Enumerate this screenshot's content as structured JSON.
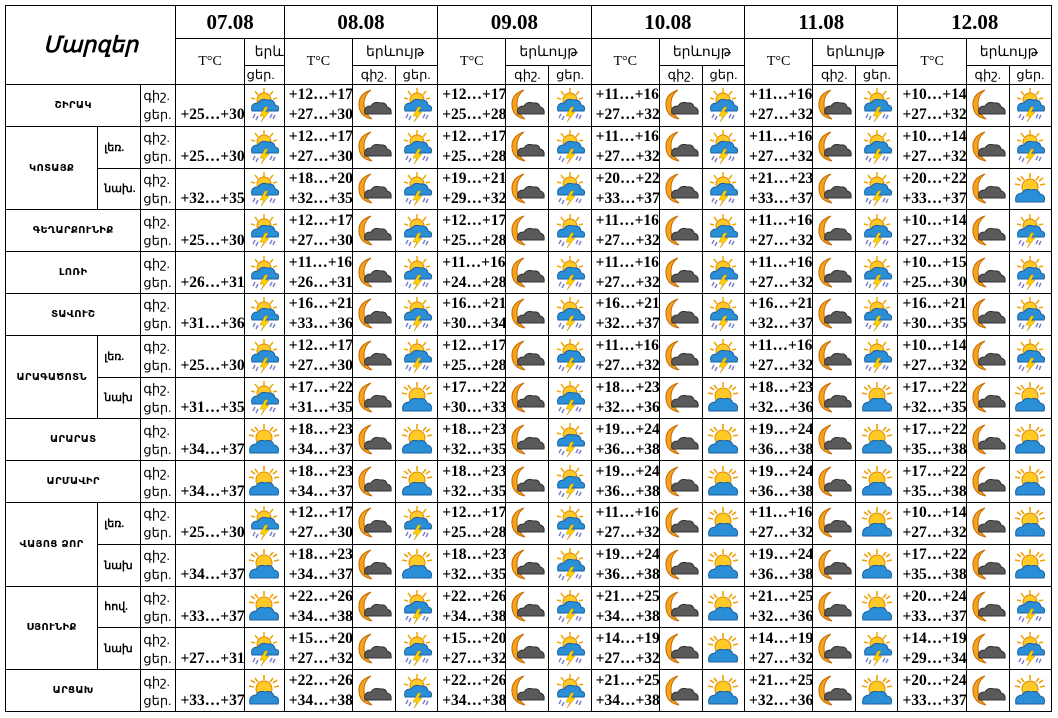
{
  "header": {
    "title": "Մարզեր",
    "temp_label": "T°C",
    "phenomenon_label": "երևույթ",
    "phenomenon_label_short": "երև",
    "night_label": "գիշ.",
    "day_label": "ցեր.",
    "dates": [
      "07.08",
      "08.08",
      "09.08",
      "10.08",
      "11.08",
      "12.08"
    ]
  },
  "icon_types": {
    "storm": "sun-cloud-thunderstorm-icon",
    "partly": "partly-cloudy-sun-icon",
    "night": "moon-cloud-icon"
  },
  "regions": [
    {
      "name": "ՇԻՐԱԿ",
      "subs": [
        {
          "sub": "",
          "d07": {
            "day": "+25…+30",
            "icon": "storm"
          },
          "days": [
            {
              "night": "+12…+17",
              "day": "+27…+30",
              "icon": "storm"
            },
            {
              "night": "+12…+17",
              "day": "+25…+28",
              "icon": "storm"
            },
            {
              "night": "+11…+16",
              "day": "+27…+32",
              "icon": "storm"
            },
            {
              "night": "+11…+16",
              "day": "+27…+32",
              "icon": "storm"
            },
            {
              "night": "+10…+14",
              "day": "+27…+32",
              "icon": "storm"
            }
          ]
        }
      ]
    },
    {
      "name": "ԿՈՏԱՅՔ",
      "subs": [
        {
          "sub": "լեռ.",
          "d07": {
            "day": "+25…+30",
            "icon": "storm"
          },
          "days": [
            {
              "night": "+12…+17",
              "day": "+27…+30",
              "icon": "storm"
            },
            {
              "night": "+12…+17",
              "day": "+25…+28",
              "icon": "storm"
            },
            {
              "night": "+11…+16",
              "day": "+27…+32",
              "icon": "storm"
            },
            {
              "night": "+11…+16",
              "day": "+27…+32",
              "icon": "storm"
            },
            {
              "night": "+10…+14",
              "day": "+27…+32",
              "icon": "storm"
            }
          ]
        },
        {
          "sub": "նախ.",
          "d07": {
            "day": "+32…+35",
            "icon": "storm"
          },
          "days": [
            {
              "night": "+18…+20",
              "day": "+32…+35",
              "icon": "storm"
            },
            {
              "night": "+19…+21",
              "day": "+29…+32",
              "icon": "storm"
            },
            {
              "night": "+20…+22",
              "day": "+33…+37",
              "icon": "storm"
            },
            {
              "night": "+21…+23",
              "day": "+33…+37",
              "icon": "storm"
            },
            {
              "night": "+20…+22",
              "day": "+33…+37",
              "icon": "partly"
            }
          ]
        }
      ]
    },
    {
      "name": "ԳԵՂԱՐՔՈՒՆԻՔ",
      "subs": [
        {
          "sub": "",
          "d07": {
            "day": "+25…+30",
            "icon": "storm"
          },
          "days": [
            {
              "night": "+12…+17",
              "day": "+27…+30",
              "icon": "storm"
            },
            {
              "night": "+12…+17",
              "day": "+25…+28",
              "icon": "storm"
            },
            {
              "night": "+11…+16",
              "day": "+27…+32",
              "icon": "storm"
            },
            {
              "night": "+11…+16",
              "day": "+27…+32",
              "icon": "storm"
            },
            {
              "night": "+10…+14",
              "day": "+27…+32",
              "icon": "storm"
            }
          ]
        }
      ]
    },
    {
      "name": "ԼՈՌԻ",
      "subs": [
        {
          "sub": "",
          "d07": {
            "day": "+26…+31",
            "icon": "storm"
          },
          "days": [
            {
              "night": "+11…+16",
              "day": "+26…+31",
              "icon": "storm"
            },
            {
              "night": "+11…+16",
              "day": "+24…+28",
              "icon": "storm"
            },
            {
              "night": "+11…+16",
              "day": "+27…+32",
              "icon": "storm"
            },
            {
              "night": "+11…+16",
              "day": "+27…+32",
              "icon": "storm"
            },
            {
              "night": "+10…+15",
              "day": "+25…+30",
              "icon": "storm"
            }
          ]
        }
      ]
    },
    {
      "name": "ՏԱՎՈՒՇ",
      "subs": [
        {
          "sub": "",
          "d07": {
            "day": "+31…+36",
            "icon": "storm"
          },
          "days": [
            {
              "night": "+16…+21",
              "day": "+33…+36",
              "icon": "storm"
            },
            {
              "night": "+16…+21",
              "day": "+30…+34",
              "icon": "storm"
            },
            {
              "night": "+16…+21",
              "day": "+32…+37",
              "icon": "storm"
            },
            {
              "night": "+16…+21",
              "day": "+32…+37",
              "icon": "storm"
            },
            {
              "night": "+16…+21",
              "day": "+30…+35",
              "icon": "storm"
            }
          ]
        }
      ]
    },
    {
      "name": "ԱՐԱԳԱԾՈՏՆ",
      "subs": [
        {
          "sub": "լեռ.",
          "d07": {
            "day": "+25…+30",
            "icon": "storm"
          },
          "days": [
            {
              "night": "+12…+17",
              "day": "+27…+30",
              "icon": "storm"
            },
            {
              "night": "+12…+17",
              "day": "+25…+28",
              "icon": "storm"
            },
            {
              "night": "+11…+16",
              "day": "+27…+32",
              "icon": "storm"
            },
            {
              "night": "+11…+16",
              "day": "+27…+32",
              "icon": "storm"
            },
            {
              "night": "+10…+14",
              "day": "+27…+32",
              "icon": "storm"
            }
          ]
        },
        {
          "sub": "նախ",
          "d07": {
            "day": "+31…+35",
            "icon": "storm"
          },
          "days": [
            {
              "night": "+17…+22",
              "day": "+31…+35",
              "icon": "partly"
            },
            {
              "night": "+17…+22",
              "day": "+30…+33",
              "icon": "storm"
            },
            {
              "night": "+18…+23",
              "day": "+32…+36",
              "icon": "partly"
            },
            {
              "night": "+18…+23",
              "day": "+32…+36",
              "icon": "partly"
            },
            {
              "night": "+17…+22",
              "day": "+32…+35",
              "icon": "partly"
            }
          ]
        }
      ]
    },
    {
      "name": "ԱՐԱՐԱՏ",
      "subs": [
        {
          "sub": "",
          "d07": {
            "day": "+34…+37",
            "icon": "partly"
          },
          "days": [
            {
              "night": "+18…+23",
              "day": "+34…+37",
              "icon": "partly"
            },
            {
              "night": "+18…+23",
              "day": "+32…+35",
              "icon": "storm"
            },
            {
              "night": "+19…+24",
              "day": "+36…+38",
              "icon": "partly"
            },
            {
              "night": "+19…+24",
              "day": "+36…+38",
              "icon": "partly"
            },
            {
              "night": "+17…+22",
              "day": "+35…+38",
              "icon": "partly"
            }
          ]
        }
      ]
    },
    {
      "name": "ԱՐՄԱՎԻՐ",
      "subs": [
        {
          "sub": "",
          "d07": {
            "day": "+34…+37",
            "icon": "partly"
          },
          "days": [
            {
              "night": "+18…+23",
              "day": "+34…+37",
              "icon": "partly"
            },
            {
              "night": "+18…+23",
              "day": "+32…+35",
              "icon": "storm"
            },
            {
              "night": "+19…+24",
              "day": "+36…+38",
              "icon": "partly"
            },
            {
              "night": "+19…+24",
              "day": "+36…+38",
              "icon": "partly"
            },
            {
              "night": "+17…+22",
              "day": "+35…+38",
              "icon": "partly"
            }
          ]
        }
      ]
    },
    {
      "name": "ՎԱՅՈՑ ՁՈՐ",
      "subs": [
        {
          "sub": "լեռ.",
          "d07": {
            "day": "+25…+30",
            "icon": "storm"
          },
          "days": [
            {
              "night": "+12…+17",
              "day": "+27…+30",
              "icon": "storm"
            },
            {
              "night": "+12…+17",
              "day": "+25…+28",
              "icon": "storm"
            },
            {
              "night": "+11…+16",
              "day": "+27…+32",
              "icon": "partly"
            },
            {
              "night": "+11…+16",
              "day": "+27…+32",
              "icon": "partly"
            },
            {
              "night": "+10…+14",
              "day": "+27…+32",
              "icon": "partly"
            }
          ]
        },
        {
          "sub": "նախ",
          "d07": {
            "day": "+34…+37",
            "icon": "partly"
          },
          "days": [
            {
              "night": "+18…+23",
              "day": "+34…+37",
              "icon": "partly"
            },
            {
              "night": "+18…+23",
              "day": "+32…+35",
              "icon": "storm"
            },
            {
              "night": "+19…+24",
              "day": "+36…+38",
              "icon": "partly"
            },
            {
              "night": "+19…+24",
              "day": "+36…+38",
              "icon": "partly"
            },
            {
              "night": "+17…+22",
              "day": "+35…+38",
              "icon": "partly"
            }
          ]
        }
      ]
    },
    {
      "name": "ՍՅՈՒՆԻՔ",
      "subs": [
        {
          "sub": "հով.",
          "d07": {
            "day": "+33…+37",
            "icon": "partly"
          },
          "days": [
            {
              "night": "+22…+26",
              "day": "+34…+38",
              "icon": "storm"
            },
            {
              "night": "+22…+26",
              "day": "+34…+38",
              "icon": "storm"
            },
            {
              "night": "+21…+25",
              "day": "+34…+38",
              "icon": "partly"
            },
            {
              "night": "+21…+25",
              "day": "+32…+36",
              "icon": "partly"
            },
            {
              "night": "+20…+24",
              "day": "+33…+37",
              "icon": "storm"
            }
          ]
        },
        {
          "sub": "նախ",
          "d07": {
            "day": "+27…+31",
            "icon": "storm"
          },
          "days": [
            {
              "night": "+15…+20",
              "day": "+27…+32",
              "icon": "storm"
            },
            {
              "night": "+15…+20",
              "day": "+27…+32",
              "icon": "storm"
            },
            {
              "night": "+14…+19",
              "day": "+27…+32",
              "icon": "partly"
            },
            {
              "night": "+14…+19",
              "day": "+27…+32",
              "icon": "storm"
            },
            {
              "night": "+14…+19",
              "day": "+29…+34",
              "icon": "storm"
            }
          ]
        }
      ]
    },
    {
      "name": "ԱՐՑԱԽ",
      "subs": [
        {
          "sub": "",
          "d07": {
            "day": "+33…+37",
            "icon": "partly"
          },
          "days": [
            {
              "night": "+22…+26",
              "day": "+34…+38",
              "icon": "storm"
            },
            {
              "night": "+22…+26",
              "day": "+34…+38",
              "icon": "storm"
            },
            {
              "night": "+21…+25",
              "day": "+34…+38",
              "icon": "partly"
            },
            {
              "night": "+21…+25",
              "day": "+32…+36",
              "icon": "partly"
            },
            {
              "night": "+20…+24",
              "day": "+33…+37",
              "icon": "partly"
            }
          ]
        }
      ]
    }
  ]
}
